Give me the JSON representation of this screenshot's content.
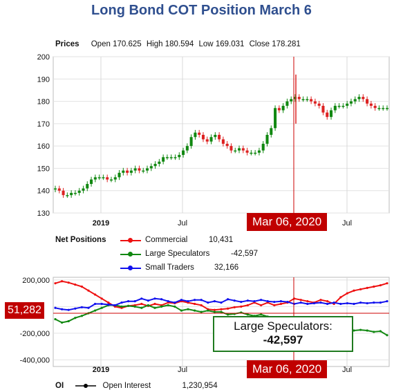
{
  "title": "Long Bond COT Position March 6",
  "prices": {
    "label": "Prices",
    "open_label": "Open",
    "open": "170.625",
    "high_label": "High",
    "high": "180.594",
    "low_label": "Low",
    "low": "169.031",
    "close_label": "Close",
    "close": "178.281"
  },
  "net_positions": {
    "label": "Net Positions",
    "legend": [
      {
        "name": "Commercial",
        "value": "10,431",
        "color": "#ee1111"
      },
      {
        "name": "Large Speculators",
        "value": "-42,597",
        "color": "#118811"
      },
      {
        "name": "Small Traders",
        "value": "32,166",
        "color": "#1111ee"
      }
    ]
  },
  "oi": {
    "label": "OI",
    "name": "Open Interest",
    "value": "1,230,954"
  },
  "date_badge": "Mar 06, 2020",
  "value_badge": "51,282",
  "callout": {
    "line1": "Large Speculators:",
    "line2": "-42,597"
  },
  "colors": {
    "title": "#2f4f8f",
    "badge": "#c00000",
    "up_candle": "#118811",
    "down_candle": "#dd2222",
    "crosshair": "#cc0000"
  },
  "chart_data": [
    {
      "type": "candlestick",
      "title": "Prices",
      "x_ticks": [
        "2019",
        "Jul",
        "Jul"
      ],
      "ylim": [
        130,
        200
      ],
      "y_ticks": [
        "200",
        "190",
        "180",
        "170",
        "160",
        "150",
        "140",
        "130"
      ],
      "grid": true,
      "close_series": [
        141,
        140,
        138,
        138,
        139,
        139,
        140,
        141,
        143,
        145,
        146,
        146,
        146,
        145,
        145,
        146,
        148,
        149,
        148,
        149,
        150,
        149,
        149,
        150,
        151,
        152,
        153,
        155,
        155,
        155,
        155,
        156,
        158,
        160,
        164,
        166,
        165,
        163,
        162,
        164,
        165,
        163,
        161,
        160,
        158,
        158,
        159,
        158,
        157,
        157,
        157,
        158,
        161,
        165,
        168,
        177,
        176,
        178,
        180,
        181,
        182,
        181,
        181,
        181,
        180,
        179,
        178,
        175,
        173,
        176,
        178,
        178,
        178,
        179,
        180,
        181,
        182,
        181,
        179,
        178,
        177,
        177,
        177,
        177
      ],
      "spike_high": 192,
      "last": {
        "open": 170.625,
        "high": 180.594,
        "low": 169.031,
        "close": 178.281
      }
    },
    {
      "type": "line",
      "title": "Net Positions",
      "x_ticks": [
        "2019",
        "Jul",
        "Jul"
      ],
      "ylim": [
        -450000,
        220000
      ],
      "y_ticks": [
        "200,000",
        "-200,000",
        "-400,000"
      ],
      "series": [
        {
          "name": "Commercial",
          "color": "#ee1111",
          "values": [
            175000,
            190000,
            180000,
            165000,
            150000,
            120000,
            90000,
            60000,
            30000,
            0,
            -10000,
            5000,
            10000,
            20000,
            5000,
            20000,
            10000,
            30000,
            25000,
            40000,
            30000,
            20000,
            10000,
            -20000,
            -25000,
            -20000,
            -15000,
            -5000,
            0,
            10000,
            30000,
            10000,
            30000,
            10000,
            20000,
            30000,
            60000,
            50000,
            40000,
            30000,
            50000,
            40000,
            20000,
            70000,
            100000,
            120000,
            130000,
            140000,
            150000,
            160000,
            175000
          ]
        },
        {
          "name": "Large Speculators",
          "color": "#118811",
          "values": [
            -95000,
            -120000,
            -110000,
            -85000,
            -70000,
            -50000,
            -30000,
            -10000,
            10000,
            10000,
            0,
            5000,
            0,
            -10000,
            10000,
            -10000,
            0,
            10000,
            0,
            -30000,
            -20000,
            -30000,
            -40000,
            -30000,
            -40000,
            -40000,
            -60000,
            -55000,
            -45000,
            -60000,
            -70000,
            -60000,
            -75000,
            -90000,
            -100000,
            -110000,
            -120000,
            -135000,
            -150000,
            -160000,
            -170000,
            -155000,
            -165000,
            -175000,
            -170000,
            -180000,
            -175000,
            -180000,
            -190000,
            -185000,
            -215000
          ]
        },
        {
          "name": "Small Traders",
          "color": "#1111ee",
          "values": [
            -10000,
            -20000,
            -25000,
            -15000,
            -5000,
            -10000,
            20000,
            20000,
            15000,
            10000,
            30000,
            40000,
            40000,
            60000,
            45000,
            60000,
            55000,
            40000,
            30000,
            50000,
            40000,
            50000,
            50000,
            30000,
            40000,
            30000,
            55000,
            45000,
            35000,
            45000,
            40000,
            50000,
            40000,
            35000,
            40000,
            35000,
            20000,
            30000,
            20000,
            25000,
            30000,
            20000,
            30000,
            20000,
            25000,
            20000,
            30000,
            25000,
            30000,
            30000,
            40000
          ]
        }
      ]
    }
  ]
}
